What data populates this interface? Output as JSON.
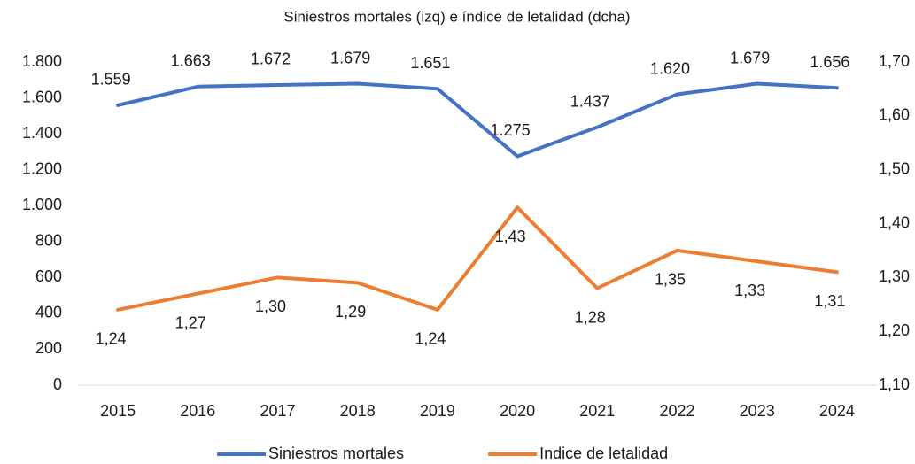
{
  "chart_data": {
    "type": "line",
    "title": "Siniestros mortales (izq) e índice de letalidad (dcha)",
    "categories": [
      "2015",
      "2016",
      "2017",
      "2018",
      "2019",
      "2020",
      "2021",
      "2022",
      "2023",
      "2024"
    ],
    "series": [
      {
        "name": "Siniestros mortales",
        "color": "#4472c4",
        "axis": "y",
        "values": [
          1559,
          1663,
          1672,
          1679,
          1651,
          1275,
          1437,
          1620,
          1679,
          1656
        ],
        "value_labels": [
          "1.559",
          "1.663",
          "1.672",
          "1.679",
          "1.651",
          "1.275",
          "1.437",
          "1.620",
          "1.679",
          "1.656"
        ]
      },
      {
        "name": "Indice de letalidad",
        "color": "#ed7d31",
        "axis": "y2",
        "values": [
          1.24,
          1.27,
          1.3,
          1.29,
          1.24,
          1.43,
          1.28,
          1.35,
          1.33,
          1.31
        ],
        "value_labels": [
          "1,24",
          "1,27",
          "1,30",
          "1,29",
          "1,24",
          "1,43",
          "1,28",
          "1,35",
          "1,33",
          "1,31"
        ]
      }
    ],
    "ylim": [
      0,
      1800
    ],
    "yticks": [
      0,
      200,
      400,
      600,
      800,
      {
        "value": 1000,
        "label": "1.000"
      },
      {
        "value": 1200,
        "label": "1.200"
      },
      {
        "value": 1400,
        "label": "1.400"
      },
      {
        "value": 1600,
        "label": "1.600"
      },
      {
        "value": 1800,
        "label": "1.800"
      }
    ],
    "y2lim": [
      1.1,
      1.7
    ],
    "y2ticks": [
      {
        "value": 1.1,
        "label": "1,10"
      },
      {
        "value": 1.2,
        "label": "1,20"
      },
      {
        "value": 1.3,
        "label": "1,30"
      },
      {
        "value": 1.4,
        "label": "1,40"
      },
      {
        "value": 1.5,
        "label": "1,50"
      },
      {
        "value": 1.6,
        "label": "1,60"
      },
      {
        "value": 1.7,
        "label": "1,70"
      }
    ],
    "grid": false,
    "legend": "bottom"
  }
}
